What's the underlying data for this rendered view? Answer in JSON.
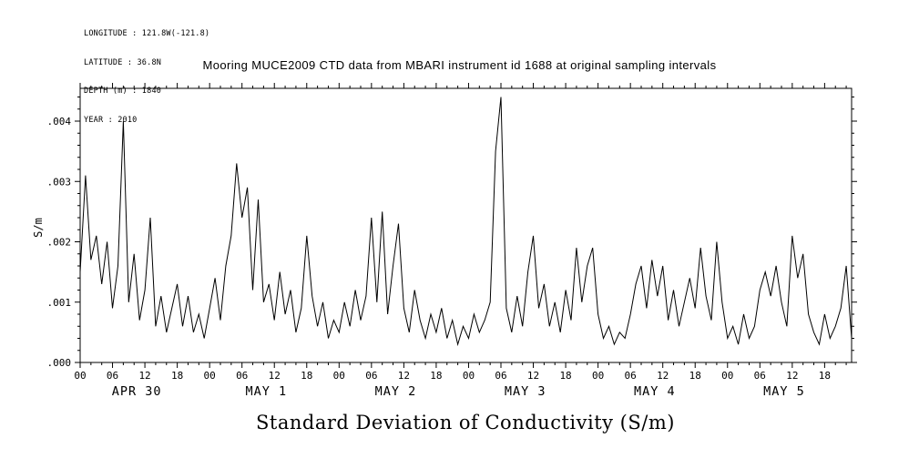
{
  "meta": {
    "lines": [
      "LONGITUDE : 121.8W(-121.8)",
      "LATITUDE : 36.8N",
      "DEPTH (m) : 1840",
      "YEAR : 2010"
    ]
  },
  "chart_data": {
    "type": "line",
    "title": "Mooring MUCE2009 CTD data from MBARI instrument id 1688 at original sampling intervals",
    "xlabel": "Standard Deviation of Conductivity (S/m)",
    "ylabel": "S/m",
    "ylim": [
      0.0,
      0.00455
    ],
    "grid": false,
    "legend": "none",
    "y_major_ticks": [
      0.0,
      0.001,
      0.002,
      0.003,
      0.004
    ],
    "y_tick_labels": [
      ".000",
      ".001",
      ".002",
      ".003",
      ".004"
    ],
    "y_minor_step": 0.0002,
    "x_unit": "hours",
    "x_hours_total": 143,
    "x_major_interval_hours": 6,
    "x_minor_interval_hours": 2,
    "x_tick_labels_cycle": [
      "00",
      "06",
      "12",
      "18"
    ],
    "day_labels": [
      "APR 30",
      "MAY 1",
      "MAY 2",
      "MAY 3",
      "MAY 4",
      "MAY 5"
    ],
    "series": [
      {
        "name": "std_conductivity_S_per_m",
        "sampling": "hourly estimate read from plot",
        "values": [
          0.0015,
          0.0031,
          0.0017,
          0.0021,
          0.0013,
          0.002,
          0.0009,
          0.0016,
          0.004,
          0.001,
          0.0018,
          0.0007,
          0.0012,
          0.0024,
          0.0006,
          0.0011,
          0.0005,
          0.0009,
          0.0013,
          0.0006,
          0.0011,
          0.0005,
          0.0008,
          0.0004,
          0.0009,
          0.0014,
          0.0007,
          0.0016,
          0.0021,
          0.0033,
          0.0024,
          0.0029,
          0.0012,
          0.0027,
          0.001,
          0.0013,
          0.0007,
          0.0015,
          0.0008,
          0.0012,
          0.0005,
          0.0009,
          0.0021,
          0.0011,
          0.0006,
          0.001,
          0.0004,
          0.0007,
          0.0005,
          0.001,
          0.0006,
          0.0012,
          0.0007,
          0.0011,
          0.0024,
          0.001,
          0.0025,
          0.0008,
          0.0016,
          0.0023,
          0.0009,
          0.0005,
          0.0012,
          0.0007,
          0.0004,
          0.0008,
          0.0005,
          0.0009,
          0.0004,
          0.0007,
          0.0003,
          0.0006,
          0.0004,
          0.0008,
          0.0005,
          0.0007,
          0.001,
          0.0035,
          0.0044,
          0.0009,
          0.0005,
          0.0011,
          0.0006,
          0.0015,
          0.0021,
          0.0009,
          0.0013,
          0.0006,
          0.001,
          0.0005,
          0.0012,
          0.0007,
          0.0019,
          0.001,
          0.0016,
          0.0019,
          0.0008,
          0.0004,
          0.0006,
          0.0003,
          0.0005,
          0.0004,
          0.0008,
          0.0013,
          0.0016,
          0.0009,
          0.0017,
          0.0011,
          0.0016,
          0.0007,
          0.0012,
          0.0006,
          0.001,
          0.0014,
          0.0009,
          0.0019,
          0.0011,
          0.0007,
          0.002,
          0.001,
          0.0004,
          0.0006,
          0.0003,
          0.0008,
          0.0004,
          0.0006,
          0.0012,
          0.0015,
          0.0011,
          0.0016,
          0.001,
          0.0006,
          0.0021,
          0.0014,
          0.0018,
          0.0008,
          0.0005,
          0.0003,
          0.0008,
          0.0004,
          0.0006,
          0.0009,
          0.0016,
          0.0004
        ]
      }
    ]
  }
}
